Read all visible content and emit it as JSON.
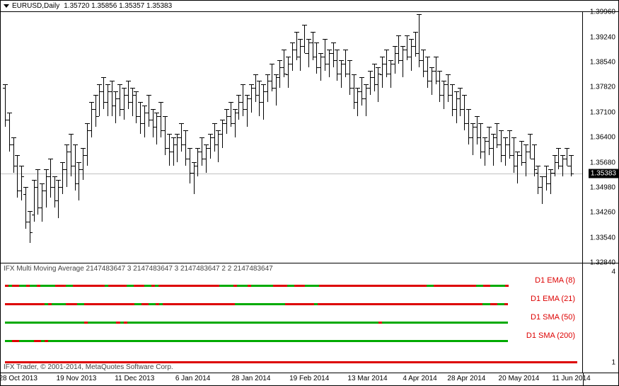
{
  "header": {
    "symbol": "EURUSD,Daily",
    "ohlc": "1.35720 1.35856 1.35357 1.35383"
  },
  "price_chart": {
    "ymin": 1.3284,
    "ymax": 1.3996,
    "ytick_step": 0.0072,
    "yticks": [
      1.3996,
      1.3924,
      1.3854,
      1.3782,
      1.371,
      1.364,
      1.3568,
      1.3498,
      1.3426,
      1.3354,
      1.3284
    ],
    "current_price": 1.35383,
    "hline_color": "#c0c0c0",
    "bar_color": "#000000",
    "background": "#ffffff"
  },
  "bars": [
    {
      "h": 1.379,
      "l": 1.367,
      "o": 1.378,
      "c": 1.369
    },
    {
      "h": 1.371,
      "l": 1.36,
      "o": 1.369,
      "c": 1.362
    },
    {
      "h": 1.364,
      "l": 1.354,
      "o": 1.362,
      "c": 1.356
    },
    {
      "h": 1.359,
      "l": 1.347,
      "o": 1.356,
      "c": 1.349
    },
    {
      "h": 1.356,
      "l": 1.346,
      "o": 1.349,
      "c": 1.353
    },
    {
      "h": 1.35,
      "l": 1.338,
      "o": 1.348,
      "c": 1.34
    },
    {
      "h": 1.343,
      "l": 1.334,
      "o": 1.34,
      "c": 1.337
    },
    {
      "h": 1.352,
      "l": 1.34,
      "o": 1.342,
      "c": 1.35
    },
    {
      "h": 1.355,
      "l": 1.342,
      "o": 1.35,
      "c": 1.344
    },
    {
      "h": 1.351,
      "l": 1.34,
      "o": 1.344,
      "c": 1.349
    },
    {
      "h": 1.355,
      "l": 1.344,
      "o": 1.349,
      "c": 1.353
    },
    {
      "h": 1.358,
      "l": 1.347,
      "o": 1.353,
      "c": 1.35
    },
    {
      "h": 1.353,
      "l": 1.344,
      "o": 1.35,
      "c": 1.346
    },
    {
      "h": 1.352,
      "l": 1.341,
      "o": 1.346,
      "c": 1.35
    },
    {
      "h": 1.357,
      "l": 1.348,
      "o": 1.35,
      "c": 1.355
    },
    {
      "h": 1.362,
      "l": 1.35,
      "o": 1.355,
      "c": 1.36
    },
    {
      "h": 1.365,
      "l": 1.353,
      "o": 1.36,
      "c": 1.356
    },
    {
      "h": 1.362,
      "l": 1.349,
      "o": 1.356,
      "c": 1.351
    },
    {
      "h": 1.357,
      "l": 1.346,
      "o": 1.351,
      "c": 1.355
    },
    {
      "h": 1.361,
      "l": 1.352,
      "o": 1.355,
      "c": 1.359
    },
    {
      "h": 1.368,
      "l": 1.356,
      "o": 1.359,
      "c": 1.366
    },
    {
      "h": 1.374,
      "l": 1.364,
      "o": 1.366,
      "c": 1.372
    },
    {
      "h": 1.376,
      "l": 1.367,
      "o": 1.372,
      "c": 1.37
    },
    {
      "h": 1.379,
      "l": 1.37,
      "o": 1.37,
      "c": 1.377
    },
    {
      "h": 1.381,
      "l": 1.372,
      "o": 1.377,
      "c": 1.374
    },
    {
      "h": 1.379,
      "l": 1.37,
      "o": 1.374,
      "c": 1.377
    },
    {
      "h": 1.38,
      "l": 1.37,
      "o": 1.377,
      "c": 1.373
    },
    {
      "h": 1.377,
      "l": 1.368,
      "o": 1.373,
      "c": 1.375
    },
    {
      "h": 1.379,
      "l": 1.37,
      "o": 1.375,
      "c": 1.372
    },
    {
      "h": 1.378,
      "l": 1.369,
      "o": 1.372,
      "c": 1.376
    },
    {
      "h": 1.38,
      "l": 1.372,
      "o": 1.376,
      "c": 1.374
    },
    {
      "h": 1.378,
      "l": 1.37,
      "o": 1.374,
      "c": 1.376
    },
    {
      "h": 1.377,
      "l": 1.368,
      "o": 1.376,
      "c": 1.37
    },
    {
      "h": 1.374,
      "l": 1.365,
      "o": 1.37,
      "c": 1.368
    },
    {
      "h": 1.373,
      "l": 1.364,
      "o": 1.368,
      "c": 1.371
    },
    {
      "h": 1.376,
      "l": 1.367,
      "o": 1.371,
      "c": 1.369
    },
    {
      "h": 1.372,
      "l": 1.364,
      "o": 1.369,
      "c": 1.367
    },
    {
      "h": 1.371,
      "l": 1.362,
      "o": 1.367,
      "c": 1.37
    },
    {
      "h": 1.374,
      "l": 1.364,
      "o": 1.37,
      "c": 1.366
    },
    {
      "h": 1.37,
      "l": 1.359,
      "o": 1.366,
      "c": 1.361
    },
    {
      "h": 1.365,
      "l": 1.356,
      "o": 1.361,
      "c": 1.36
    },
    {
      "h": 1.364,
      "l": 1.356,
      "o": 1.36,
      "c": 1.362
    },
    {
      "h": 1.365,
      "l": 1.357,
      "o": 1.362,
      "c": 1.364
    },
    {
      "h": 1.368,
      "l": 1.36,
      "o": 1.364,
      "c": 1.362
    },
    {
      "h": 1.366,
      "l": 1.356,
      "o": 1.362,
      "c": 1.358
    },
    {
      "h": 1.361,
      "l": 1.351,
      "o": 1.358,
      "c": 1.354
    },
    {
      "h": 1.357,
      "l": 1.348,
      "o": 1.354,
      "c": 1.356
    },
    {
      "h": 1.361,
      "l": 1.353,
      "o": 1.356,
      "c": 1.36
    },
    {
      "h": 1.364,
      "l": 1.356,
      "o": 1.36,
      "c": 1.358
    },
    {
      "h": 1.362,
      "l": 1.354,
      "o": 1.358,
      "c": 1.361
    },
    {
      "h": 1.365,
      "l": 1.358,
      "o": 1.361,
      "c": 1.364
    },
    {
      "h": 1.368,
      "l": 1.36,
      "o": 1.364,
      "c": 1.362
    },
    {
      "h": 1.366,
      "l": 1.357,
      "o": 1.362,
      "c": 1.365
    },
    {
      "h": 1.369,
      "l": 1.361,
      "o": 1.365,
      "c": 1.368
    },
    {
      "h": 1.372,
      "l": 1.365,
      "o": 1.368,
      "c": 1.37
    },
    {
      "h": 1.374,
      "l": 1.367,
      "o": 1.37,
      "c": 1.368
    },
    {
      "h": 1.372,
      "l": 1.364,
      "o": 1.368,
      "c": 1.371
    },
    {
      "h": 1.376,
      "l": 1.369,
      "o": 1.371,
      "c": 1.374
    },
    {
      "h": 1.379,
      "l": 1.37,
      "o": 1.374,
      "c": 1.372
    },
    {
      "h": 1.376,
      "l": 1.367,
      "o": 1.372,
      "c": 1.375
    },
    {
      "h": 1.379,
      "l": 1.371,
      "o": 1.375,
      "c": 1.378
    },
    {
      "h": 1.382,
      "l": 1.374,
      "o": 1.378,
      "c": 1.376
    },
    {
      "h": 1.38,
      "l": 1.37,
      "o": 1.376,
      "c": 1.374
    },
    {
      "h": 1.379,
      "l": 1.369,
      "o": 1.374,
      "c": 1.377
    },
    {
      "h": 1.382,
      "l": 1.374,
      "o": 1.377,
      "c": 1.38
    },
    {
      "h": 1.385,
      "l": 1.377,
      "o": 1.38,
      "c": 1.378
    },
    {
      "h": 1.382,
      "l": 1.373,
      "o": 1.378,
      "c": 1.381
    },
    {
      "h": 1.386,
      "l": 1.378,
      "o": 1.381,
      "c": 1.384
    },
    {
      "h": 1.389,
      "l": 1.381,
      "o": 1.384,
      "c": 1.382
    },
    {
      "h": 1.387,
      "l": 1.378,
      "o": 1.382,
      "c": 1.385
    },
    {
      "h": 1.391,
      "l": 1.383,
      "o": 1.385,
      "c": 1.389
    },
    {
      "h": 1.394,
      "l": 1.386,
      "o": 1.389,
      "c": 1.387
    },
    {
      "h": 1.392,
      "l": 1.383,
      "o": 1.387,
      "c": 1.39
    },
    {
      "h": 1.396,
      "l": 1.388,
      "o": 1.39,
      "c": 1.388
    },
    {
      "h": 1.392,
      "l": 1.384,
      "o": 1.388,
      "c": 1.391
    },
    {
      "h": 1.394,
      "l": 1.386,
      "o": 1.391,
      "c": 1.387
    },
    {
      "h": 1.391,
      "l": 1.382,
      "o": 1.387,
      "c": 1.384
    },
    {
      "h": 1.388,
      "l": 1.38,
      "o": 1.384,
      "c": 1.387
    },
    {
      "h": 1.392,
      "l": 1.383,
      "o": 1.387,
      "c": 1.385
    },
    {
      "h": 1.389,
      "l": 1.381,
      "o": 1.385,
      "c": 1.388
    },
    {
      "h": 1.391,
      "l": 1.384,
      "o": 1.388,
      "c": 1.386
    },
    {
      "h": 1.389,
      "l": 1.38,
      "o": 1.386,
      "c": 1.382
    },
    {
      "h": 1.386,
      "l": 1.378,
      "o": 1.382,
      "c": 1.385
    },
    {
      "h": 1.389,
      "l": 1.381,
      "o": 1.385,
      "c": 1.382
    },
    {
      "h": 1.386,
      "l": 1.376,
      "o": 1.382,
      "c": 1.378
    },
    {
      "h": 1.382,
      "l": 1.372,
      "o": 1.378,
      "c": 1.374
    },
    {
      "h": 1.378,
      "l": 1.37,
      "o": 1.374,
      "c": 1.377
    },
    {
      "h": 1.381,
      "l": 1.373,
      "o": 1.377,
      "c": 1.375
    },
    {
      "h": 1.379,
      "l": 1.37,
      "o": 1.375,
      "c": 1.378
    },
    {
      "h": 1.383,
      "l": 1.376,
      "o": 1.378,
      "c": 1.381
    },
    {
      "h": 1.385,
      "l": 1.377,
      "o": 1.381,
      "c": 1.379
    },
    {
      "h": 1.384,
      "l": 1.374,
      "o": 1.379,
      "c": 1.382
    },
    {
      "h": 1.387,
      "l": 1.378,
      "o": 1.382,
      "c": 1.385
    },
    {
      "h": 1.389,
      "l": 1.381,
      "o": 1.385,
      "c": 1.382
    },
    {
      "h": 1.386,
      "l": 1.378,
      "o": 1.382,
      "c": 1.385
    },
    {
      "h": 1.39,
      "l": 1.382,
      "o": 1.385,
      "c": 1.388
    },
    {
      "h": 1.393,
      "l": 1.385,
      "o": 1.388,
      "c": 1.386
    },
    {
      "h": 1.39,
      "l": 1.381,
      "o": 1.386,
      "c": 1.389
    },
    {
      "h": 1.393,
      "l": 1.386,
      "o": 1.389,
      "c": 1.387
    },
    {
      "h": 1.392,
      "l": 1.383,
      "o": 1.387,
      "c": 1.39
    },
    {
      "h": 1.394,
      "l": 1.387,
      "o": 1.39,
      "c": 1.388
    },
    {
      "h": 1.399,
      "l": 1.384,
      "o": 1.388,
      "c": 1.386
    },
    {
      "h": 1.389,
      "l": 1.381,
      "o": 1.386,
      "c": 1.383
    },
    {
      "h": 1.387,
      "l": 1.378,
      "o": 1.383,
      "c": 1.38
    },
    {
      "h": 1.384,
      "l": 1.376,
      "o": 1.38,
      "c": 1.383
    },
    {
      "h": 1.387,
      "l": 1.379,
      "o": 1.383,
      "c": 1.38
    },
    {
      "h": 1.383,
      "l": 1.374,
      "o": 1.38,
      "c": 1.376
    },
    {
      "h": 1.38,
      "l": 1.372,
      "o": 1.376,
      "c": 1.379
    },
    {
      "h": 1.382,
      "l": 1.374,
      "o": 1.379,
      "c": 1.376
    },
    {
      "h": 1.379,
      "l": 1.37,
      "o": 1.376,
      "c": 1.372
    },
    {
      "h": 1.377,
      "l": 1.368,
      "o": 1.372,
      "c": 1.375
    },
    {
      "h": 1.378,
      "l": 1.37,
      "o": 1.375,
      "c": 1.372
    },
    {
      "h": 1.376,
      "l": 1.366,
      "o": 1.372,
      "c": 1.368
    },
    {
      "h": 1.372,
      "l": 1.362,
      "o": 1.368,
      "c": 1.364
    },
    {
      "h": 1.368,
      "l": 1.359,
      "o": 1.364,
      "c": 1.367
    },
    {
      "h": 1.37,
      "l": 1.362,
      "o": 1.367,
      "c": 1.364
    },
    {
      "h": 1.368,
      "l": 1.358,
      "o": 1.364,
      "c": 1.36
    },
    {
      "h": 1.364,
      "l": 1.356,
      "o": 1.36,
      "c": 1.363
    },
    {
      "h": 1.367,
      "l": 1.359,
      "o": 1.363,
      "c": 1.361
    },
    {
      "h": 1.365,
      "l": 1.356,
      "o": 1.361,
      "c": 1.364
    },
    {
      "h": 1.368,
      "l": 1.361,
      "o": 1.364,
      "c": 1.362
    },
    {
      "h": 1.366,
      "l": 1.357,
      "o": 1.362,
      "c": 1.359
    },
    {
      "h": 1.364,
      "l": 1.356,
      "o": 1.359,
      "c": 1.362
    },
    {
      "h": 1.366,
      "l": 1.358,
      "o": 1.362,
      "c": 1.359
    },
    {
      "h": 1.364,
      "l": 1.354,
      "o": 1.359,
      "c": 1.356
    },
    {
      "h": 1.36,
      "l": 1.351,
      "o": 1.356,
      "c": 1.359
    },
    {
      "h": 1.363,
      "l": 1.356,
      "o": 1.359,
      "c": 1.357
    },
    {
      "h": 1.362,
      "l": 1.353,
      "o": 1.357,
      "c": 1.36
    },
    {
      "h": 1.365,
      "l": 1.358,
      "o": 1.36,
      "c": 1.358
    },
    {
      "h": 1.362,
      "l": 1.353,
      "o": 1.358,
      "c": 1.355
    },
    {
      "h": 1.356,
      "l": 1.348,
      "o": 1.354,
      "c": 1.35
    },
    {
      "h": 1.353,
      "l": 1.345,
      "o": 1.35,
      "c": 1.353
    },
    {
      "h": 1.356,
      "l": 1.349,
      "o": 1.353,
      "c": 1.351
    },
    {
      "h": 1.355,
      "l": 1.348,
      "o": 1.351,
      "c": 1.354
    },
    {
      "h": 1.359,
      "l": 1.353,
      "o": 1.354,
      "c": 1.357
    },
    {
      "h": 1.361,
      "l": 1.355,
      "o": 1.357,
      "c": 1.356
    },
    {
      "h": 1.359,
      "l": 1.353,
      "o": 1.356,
      "c": 1.358
    },
    {
      "h": 1.361,
      "l": 1.356,
      "o": 1.358,
      "c": 1.356
    },
    {
      "h": 1.359,
      "l": 1.353,
      "o": 1.356,
      "c": 1.3538
    }
  ],
  "indicator": {
    "title": "IFX Multi Moving Average 2147483647 3 2147483647 3 2147483647 2 2 2147483647",
    "yticks": [
      4,
      1
    ],
    "labels": [
      "D1 EMA (8)",
      "D1 EMA (21)",
      "D1 SMA (50)",
      "D1 SMA (200)"
    ],
    "label_color": "#dd0000",
    "copyright": "IFX Trader, © 2001-2014, MetaQuotes Software Corp.",
    "green": "#00aa00",
    "red": "#dd0000",
    "rows": [
      {
        "y": 30,
        "segments": "rgrrggrggrggggrrrggrrrrrrrrrgrrrrrggrrrggrgrrrrrrrrrrrrrrrrrggggrgggrggggggrrrrggrrrggggrrrrrrrrrrrrrrrrrrrrrrrrrrrrrrggrrrrrrrrrrrrggrrggggr"
      },
      {
        "y": 56,
        "segments": "rrrrrrrrrrrgrggggrrrggrrrrrrrrrrrrrrggrrggrgrrrrrrrrrrrrrrrrrrrrggggggggggggggrrrrrrrrgrrrrrrrrrrrrrrrrrrrrrrrrrrrrrrrrrrrrrrrrrrrrrrggrrggr"
      },
      {
        "y": 82,
        "segments": "ggggggggggggggggggggggrggggggggrgrggggggggggggggggggggggggggggggggggggggggggggggggggggggggggggggggggggggrggggggggggggggggggggggggggggggggggg"
      },
      {
        "y": 108,
        "segments": "ggrrggggrrgrgggggggggggggggggggggggggggggggggggggggggggggggggggggggggggggggggggggggggggggggggggggggggggggggggggggggggggggggggggggggggggggggg"
      },
      {
        "y": 138,
        "segments": "rrrrrrrrrrrrrrrrrrrrrrrrrrrrrrrrrrrrrrrrrrrrrrrrrrrrrrrrrrrrrrrrrrrrrrrrrrrrrrrrrrrrrrrrrrrrrrrrrrrrrrrrrrrrrrrrrrrrrrrrrrrrrrrrrrrrrrrrrrrr"
      }
    ]
  },
  "x_axis": {
    "ticks": [
      {
        "pos": 0.03,
        "label": "28 Oct 2013"
      },
      {
        "pos": 0.13,
        "label": "19 Nov 2013"
      },
      {
        "pos": 0.23,
        "label": "11 Dec 2013"
      },
      {
        "pos": 0.33,
        "label": "6 Jan 2014"
      },
      {
        "pos": 0.43,
        "label": "28 Jan 2014"
      },
      {
        "pos": 0.53,
        "label": "19 Feb 2014"
      },
      {
        "pos": 0.63,
        "label": "13 Mar 2014"
      },
      {
        "pos": 0.72,
        "label": "4 Apr 2014"
      },
      {
        "pos": 0.8,
        "label": "28 Apr 2014"
      },
      {
        "pos": 0.89,
        "label": "20 May 2014"
      },
      {
        "pos": 0.98,
        "label": "11 Jun 2014"
      }
    ]
  }
}
